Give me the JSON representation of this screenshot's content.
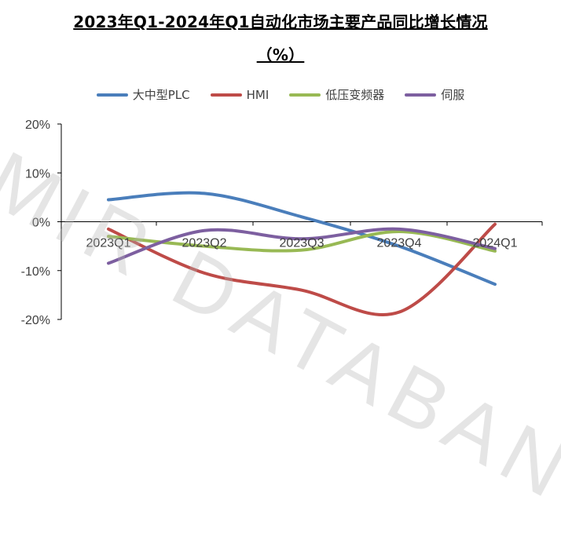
{
  "chart_data": {
    "type": "line",
    "title_line1": "2023年Q1-2024年Q1自动化市场主要产品同比增长情况",
    "title_line2": "（%）",
    "categories": [
      "2023Q1",
      "2023Q2",
      "2023Q3",
      "2023Q4",
      "2024Q1"
    ],
    "y_ticks": [
      "20%",
      "10%",
      "0%",
      "-10%",
      "-20%"
    ],
    "ylim": [
      -20,
      20
    ],
    "legend_position": "top",
    "series": [
      {
        "name": "大中型PLC",
        "color": "#4a7ebb",
        "values": [
          4.5,
          5.8,
          1.0,
          -5.0,
          -12.8
        ]
      },
      {
        "name": "HMI",
        "color": "#be4b48",
        "values": [
          -1.5,
          -10.5,
          -14.0,
          -18.5,
          -0.5
        ]
      },
      {
        "name": "低压变频器",
        "color": "#98b954",
        "values": [
          -3.0,
          -5.0,
          -5.8,
          -2.0,
          -6.0
        ]
      },
      {
        "name": "伺服",
        "color": "#7d5fa0",
        "values": [
          -8.5,
          -1.8,
          -3.5,
          -1.5,
          -5.5
        ]
      }
    ]
  },
  "watermark": "MIR DATABANK"
}
